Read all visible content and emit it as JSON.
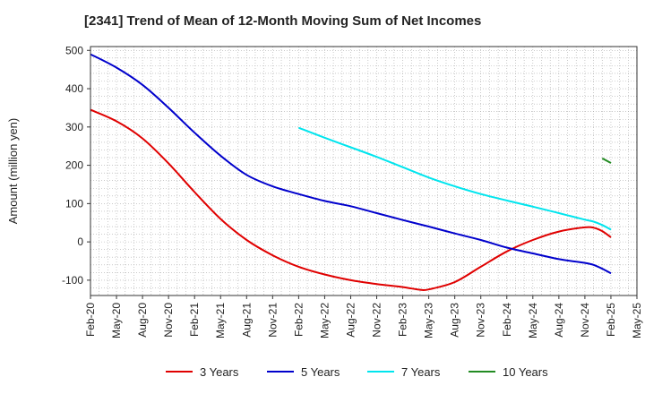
{
  "chart_data": {
    "type": "line",
    "title": "[2341]  Trend of Mean of 12-Month Moving Sum of Net Incomes",
    "ylabel": "Amount (million yen)",
    "xlabel": "",
    "ylim": [
      -140,
      510
    ],
    "yticks": [
      500,
      400,
      300,
      200,
      100,
      0,
      -100
    ],
    "xticks": [
      "Feb-20",
      "May-20",
      "Aug-20",
      "Nov-20",
      "Feb-21",
      "May-21",
      "Aug-21",
      "Nov-21",
      "Feb-22",
      "May-22",
      "Aug-22",
      "Nov-22",
      "Feb-23",
      "May-23",
      "Aug-23",
      "Nov-23",
      "Feb-24",
      "May-24",
      "Aug-24",
      "Nov-24",
      "Feb-25",
      "May-25"
    ],
    "grid": true,
    "legend_position": "bottom",
    "series": [
      {
        "name": "3 Years",
        "color": "#e00000",
        "points": [
          [
            "Feb-20",
            345
          ],
          [
            "May-20",
            315
          ],
          [
            "Aug-20",
            270
          ],
          [
            "Nov-20",
            205
          ],
          [
            "Feb-21",
            130
          ],
          [
            "May-21",
            60
          ],
          [
            "Aug-21",
            5
          ],
          [
            "Nov-21",
            -35
          ],
          [
            "Feb-22",
            -65
          ],
          [
            "May-22",
            -85
          ],
          [
            "Aug-22",
            -100
          ],
          [
            "Nov-22",
            -110
          ],
          [
            "Feb-23",
            -118
          ],
          [
            "Apr-23",
            -125
          ],
          [
            "May-23",
            -124
          ],
          [
            "Aug-23",
            -105
          ],
          [
            "Nov-23",
            -65
          ],
          [
            "Feb-24",
            -25
          ],
          [
            "May-24",
            5
          ],
          [
            "Aug-24",
            27
          ],
          [
            "Nov-24",
            38
          ],
          [
            "Dec-24",
            37
          ],
          [
            "Jan-25",
            28
          ],
          [
            "Feb-25",
            12
          ]
        ]
      },
      {
        "name": "5 Years",
        "color": "#0000cc",
        "points": [
          [
            "Feb-20",
            490
          ],
          [
            "May-20",
            455
          ],
          [
            "Aug-20",
            410
          ],
          [
            "Nov-20",
            350
          ],
          [
            "Feb-21",
            285
          ],
          [
            "May-21",
            225
          ],
          [
            "Aug-21",
            175
          ],
          [
            "Nov-21",
            145
          ],
          [
            "Feb-22",
            125
          ],
          [
            "May-22",
            107
          ],
          [
            "Aug-22",
            93
          ],
          [
            "Nov-22",
            75
          ],
          [
            "Feb-23",
            57
          ],
          [
            "May-23",
            40
          ],
          [
            "Aug-23",
            22
          ],
          [
            "Nov-23",
            5
          ],
          [
            "Feb-24",
            -15
          ],
          [
            "May-24",
            -30
          ],
          [
            "Aug-24",
            -45
          ],
          [
            "Nov-24",
            -55
          ],
          [
            "Dec-24",
            -60
          ],
          [
            "Jan-25",
            -70
          ],
          [
            "Feb-25",
            -82
          ]
        ]
      },
      {
        "name": "7 Years",
        "color": "#00e5ee",
        "points": [
          [
            "Feb-22",
            298
          ],
          [
            "May-22",
            272
          ],
          [
            "Aug-22",
            247
          ],
          [
            "Nov-22",
            222
          ],
          [
            "Feb-23",
            195
          ],
          [
            "May-23",
            168
          ],
          [
            "Aug-23",
            145
          ],
          [
            "Nov-23",
            125
          ],
          [
            "Feb-24",
            108
          ],
          [
            "May-24",
            92
          ],
          [
            "Aug-24",
            75
          ],
          [
            "Nov-24",
            58
          ],
          [
            "Dec-24",
            53
          ],
          [
            "Jan-25",
            44
          ],
          [
            "Feb-25",
            32
          ]
        ]
      },
      {
        "name": "10 Years",
        "color": "#228b22",
        "points": [
          [
            "Jan-25",
            218
          ],
          [
            "Feb-25",
            206
          ]
        ]
      }
    ]
  }
}
